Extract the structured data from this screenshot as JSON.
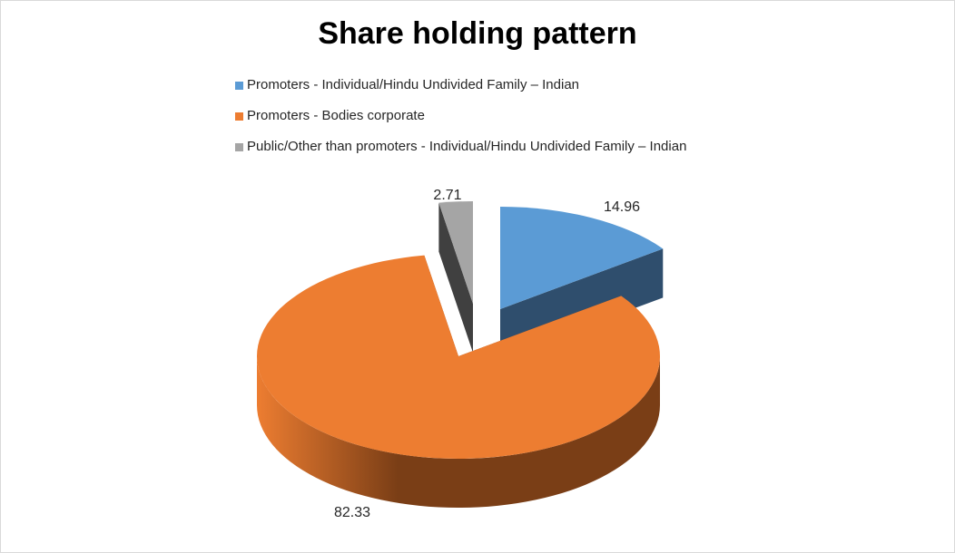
{
  "chart_data": {
    "type": "pie",
    "title": "Share holding pattern",
    "style": "3d-exploded",
    "legend_position": "top",
    "series": [
      {
        "name": "Promoters - Individual/Hindu Undivided Family – Indian",
        "value": 14.96,
        "label": "14.96",
        "color": "#5B9BD5",
        "side_color": "#2F4E6D"
      },
      {
        "name": "Promoters - Bodies corporate",
        "value": 82.33,
        "label": "82.33",
        "color": "#ED7D31",
        "side_color": "#7A3E16"
      },
      {
        "name": "Public/Other than promoters - Individual/Hindu Undivided Family – Indian",
        "value": 2.71,
        "label": "2.71",
        "color": "#A5A5A5",
        "side_color": "#404040"
      }
    ]
  }
}
